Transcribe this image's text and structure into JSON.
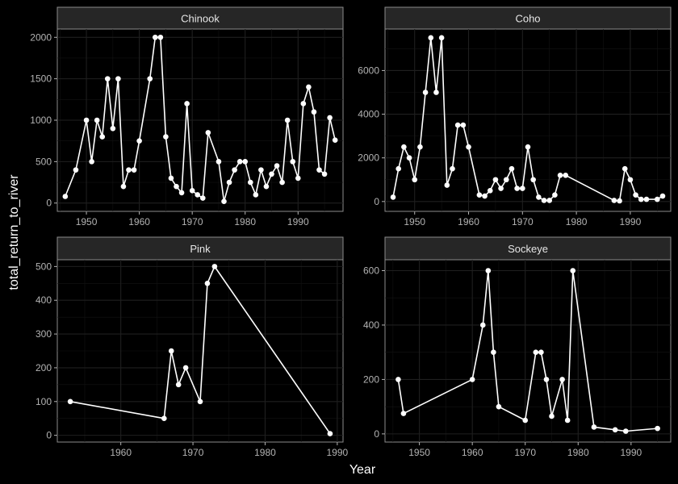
{
  "chart_data": {
    "type": "line",
    "xlabel": "Year",
    "ylabel": "total_return_to_river",
    "colors": {
      "background": "#000000",
      "strip": "#262626",
      "line": "#ffffff",
      "grid": "#1f1f1f",
      "text": "#b3b3b3"
    },
    "grid": true,
    "panels": [
      {
        "title": "Chinook",
        "xlim": [
          1944.5,
          1998.5
        ],
        "ylim": [
          -100,
          2100
        ],
        "xticks": [
          1950,
          1960,
          1970,
          1980,
          1990
        ],
        "yticks": [
          0,
          500,
          1000,
          1500,
          2000
        ],
        "x": [
          1946,
          1948,
          1950,
          1951,
          1952,
          1953,
          1954,
          1955,
          1956,
          1957,
          1958,
          1959,
          1960,
          1962,
          1963,
          1964,
          1965,
          1966,
          1967,
          1968,
          1969,
          1970,
          1971,
          1972,
          1973,
          1975,
          1976,
          1977,
          1978,
          1979,
          1980,
          1981,
          1982,
          1983,
          1984,
          1985,
          1986,
          1987,
          1988,
          1989,
          1990,
          1991,
          1992,
          1993,
          1994,
          1995,
          1996,
          1997
        ],
        "y": [
          80,
          400,
          1000,
          500,
          1000,
          800,
          1500,
          900,
          1500,
          200,
          400,
          400,
          750,
          1500,
          2000,
          2000,
          800,
          300,
          200,
          125,
          1200,
          150,
          100,
          60,
          850,
          500,
          20,
          250,
          400,
          500,
          500,
          250,
          100,
          400,
          200,
          350,
          450,
          250,
          1000,
          500,
          300,
          1200,
          1400,
          1100,
          400,
          350,
          1030,
          760
        ]
      },
      {
        "title": "Coho",
        "xlim": [
          1944.5,
          1997.5
        ],
        "ylim": [
          -450,
          7900
        ],
        "xticks": [
          1950,
          1960,
          1970,
          1980,
          1990
        ],
        "yticks": [
          0,
          2000,
          4000,
          6000
        ],
        "x": [
          1946,
          1947,
          1948,
          1949,
          1950,
          1951,
          1952,
          1953,
          1954,
          1955,
          1956,
          1957,
          1958,
          1959,
          1960,
          1962,
          1963,
          1964,
          1965,
          1966,
          1967,
          1968,
          1969,
          1970,
          1971,
          1972,
          1973,
          1974,
          1975,
          1976,
          1977,
          1978,
          1987,
          1988,
          1989,
          1990,
          1991,
          1992,
          1993,
          1995,
          1996
        ],
        "y": [
          200,
          1500,
          2500,
          2000,
          1000,
          2500,
          5000,
          7500,
          5000,
          7500,
          750,
          1500,
          3500,
          3500,
          2500,
          300,
          250,
          500,
          1000,
          600,
          1000,
          1500,
          600,
          600,
          2500,
          1000,
          200,
          50,
          50,
          300,
          1200,
          1200,
          50,
          30,
          1500,
          1000,
          300,
          100,
          100,
          100,
          250
        ]
      },
      {
        "title": "Pink",
        "xlim": [
          1951.2,
          1990.8
        ],
        "ylim": [
          -20,
          520
        ],
        "xticks": [
          1960,
          1970,
          1980,
          1990
        ],
        "yticks": [
          0,
          100,
          200,
          300,
          400,
          500
        ],
        "x": [
          1953,
          1966,
          1967,
          1968,
          1969,
          1971,
          1972,
          1973,
          1989
        ],
        "y": [
          100,
          50,
          250,
          150,
          200,
          100,
          450,
          500,
          5
        ]
      },
      {
        "title": "Sockeye",
        "xlim": [
          1943.5,
          1997.5
        ],
        "ylim": [
          -30,
          640
        ],
        "xticks": [
          1950,
          1960,
          1970,
          1980,
          1990
        ],
        "yticks": [
          0,
          200,
          400,
          600
        ],
        "x": [
          1946,
          1947,
          1960,
          1962,
          1963,
          1964,
          1965,
          1970,
          1972,
          1973,
          1974,
          1975,
          1977,
          1978,
          1979,
          1983,
          1987,
          1989,
          1995
        ],
        "y": [
          200,
          75,
          200,
          400,
          600,
          300,
          100,
          50,
          300,
          300,
          200,
          65,
          200,
          50,
          600,
          25,
          15,
          10,
          20
        ]
      }
    ]
  }
}
